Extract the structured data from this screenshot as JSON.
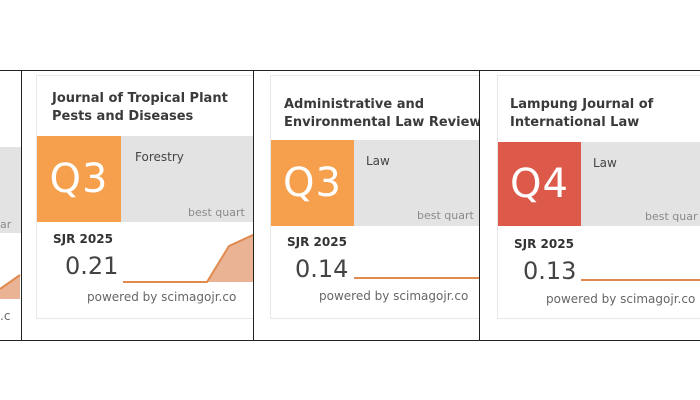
{
  "colors": {
    "q3": "#f6a04d",
    "q4": "#dd5a4b",
    "band": "#e3e3e3",
    "spark_line": "#e08a4f",
    "spark_fill": "#eab394",
    "border": "#222222"
  },
  "left_partial": {
    "best_fragment": "ar",
    "powered_fragment": ".c"
  },
  "cards": [
    {
      "title": "Journal of Tropical Plant\nPests and Diseases",
      "quartile": "Q3",
      "category": "Forestry",
      "best_label": "best quart",
      "sjr_label": "SJR 2025",
      "sjr_value": "0.21",
      "powered": "powered by scimagojr.co"
    },
    {
      "title": "Administrative and\nEnvironmental Law Review",
      "quartile": "Q3",
      "category": "Law",
      "best_label": "best quart",
      "sjr_label": "SJR 2025",
      "sjr_value": "0.14",
      "powered": "powered by scimagojr.co"
    },
    {
      "title": "Lampung Journal of\nInternational Law",
      "quartile": "Q4",
      "category": "Law",
      "best_label": "best quar",
      "sjr_label": "SJR 2025",
      "sjr_value": "0.13",
      "powered": "powered by scimagojr.co"
    }
  ]
}
